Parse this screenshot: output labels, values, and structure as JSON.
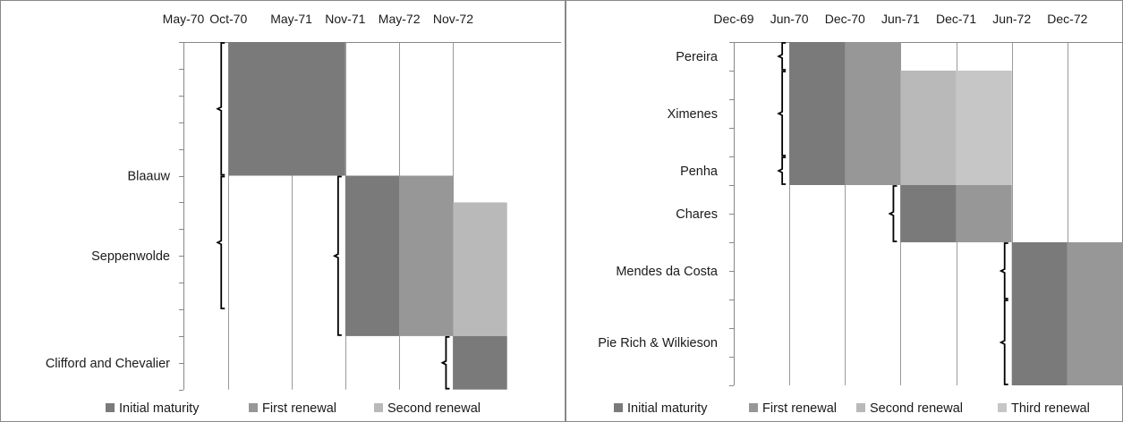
{
  "chart_data": [
    {
      "type": "bar",
      "subtype": "gantt",
      "x_tick_labels": [
        "May-70",
        "Oct-70",
        "May-71",
        "Nov-71",
        "May-72",
        "Nov-72"
      ],
      "x_range_months": [
        "May-70",
        "Nov-73"
      ],
      "grid": "vertical",
      "legend_position": "bottom",
      "series": [
        {
          "name": "Initial maturity",
          "color": "#7a7a7a"
        },
        {
          "name": "First renewal",
          "color": "#979797"
        },
        {
          "name": "Second renewal",
          "color": "#b9b9b9"
        }
      ],
      "groups": [
        {
          "label": "Blaauw",
          "rows": [
            [
              0,
              5
            ],
            [
              5,
              10
            ]
          ],
          "bars": [
            {
              "series": 0,
              "start": "Oct-70",
              "end": "Nov-71",
              "row_start": 0,
              "row_end": 5
            }
          ]
        },
        {
          "label": "Seppenwolde",
          "rows": [
            [
              5,
              11
            ]
          ],
          "bars": [
            {
              "series": 0,
              "start": "Nov-71",
              "end": "May-72",
              "row_start": 5,
              "row_end": 11
            },
            {
              "series": 1,
              "start": "May-72",
              "end": "Nov-72",
              "row_start": 5,
              "row_end": 11
            },
            {
              "series": 2,
              "start": "Nov-72",
              "end": "May-73",
              "row_start": 6,
              "row_end": 11
            }
          ]
        },
        {
          "label": "Clifford and Chevalier",
          "rows": [
            [
              11,
              13
            ]
          ],
          "bars": [
            {
              "series": 0,
              "start": "Nov-72",
              "end": "May-73",
              "row_start": 11,
              "row_end": 13
            }
          ]
        }
      ]
    },
    {
      "type": "bar",
      "subtype": "gantt",
      "x_tick_labels": [
        "Dec-69",
        "Jun-70",
        "Dec-70",
        "Jun-71",
        "Dec-71",
        "Jun-72",
        "Dec-72"
      ],
      "x_range_months": [
        "Dec-69",
        "Jun-73"
      ],
      "grid": "vertical",
      "legend_position": "bottom",
      "series": [
        {
          "name": "Initial maturity",
          "color": "#7a7a7a"
        },
        {
          "name": "First renewal",
          "color": "#979797"
        },
        {
          "name": "Second renewal",
          "color": "#b9b9b9"
        },
        {
          "name": "Third renewal",
          "color": "#c6c6c6"
        }
      ],
      "groups": [
        {
          "label": "Pereira",
          "rows": [
            [
              0,
              1
            ]
          ],
          "bars": [
            {
              "series": 0,
              "start": "Jun-70",
              "end": "Dec-70",
              "row_start": 0,
              "row_end": 1
            },
            {
              "series": 1,
              "start": "Dec-70",
              "end": "Jun-71",
              "row_start": 0,
              "row_end": 1
            }
          ]
        },
        {
          "label": "Ximenes",
          "rows": [
            [
              1,
              4
            ]
          ],
          "bars": [
            {
              "series": 0,
              "start": "Jun-70",
              "end": "Dec-70",
              "row_start": 1,
              "row_end": 4
            },
            {
              "series": 1,
              "start": "Dec-70",
              "end": "Jun-71",
              "row_start": 1,
              "row_end": 4
            },
            {
              "series": 2,
              "start": "Jun-71",
              "end": "Dec-71",
              "row_start": 1,
              "row_end": 4
            },
            {
              "series": 3,
              "start": "Dec-71",
              "end": "Jun-72",
              "row_start": 1,
              "row_end": 4
            }
          ]
        },
        {
          "label": "Penha",
          "rows": [
            [
              4,
              5
            ]
          ],
          "bars": [
            {
              "series": 0,
              "start": "Jun-70",
              "end": "Dec-70",
              "row_start": 4,
              "row_end": 5
            },
            {
              "series": 1,
              "start": "Dec-70",
              "end": "Jun-71",
              "row_start": 4,
              "row_end": 5
            },
            {
              "series": 2,
              "start": "Jun-71",
              "end": "Dec-71",
              "row_start": 4,
              "row_end": 5
            },
            {
              "series": 3,
              "start": "Dec-71",
              "end": "Jun-72",
              "row_start": 4,
              "row_end": 5
            }
          ]
        },
        {
          "label": "Chares",
          "rows": [
            [
              5,
              7
            ]
          ],
          "bars": [
            {
              "series": 0,
              "start": "Jun-71",
              "end": "Dec-71",
              "row_start": 5,
              "row_end": 7
            },
            {
              "series": 1,
              "start": "Dec-71",
              "end": "Jun-72",
              "row_start": 5,
              "row_end": 7
            }
          ]
        },
        {
          "label": "Mendes da Costa",
          "rows": [
            [
              7,
              9
            ]
          ],
          "bars": [
            {
              "series": 0,
              "start": "Jun-72",
              "end": "Dec-72",
              "row_start": 7,
              "row_end": 9
            },
            {
              "series": 1,
              "start": "Dec-72",
              "end": "Jun-73",
              "row_start": 7,
              "row_end": 9
            }
          ]
        },
        {
          "label": "Pie Rich & Wilkieson",
          "rows": [
            [
              9,
              12
            ]
          ],
          "bars": [
            {
              "series": 0,
              "start": "Jun-72",
              "end": "Dec-72",
              "row_start": 9,
              "row_end": 12
            },
            {
              "series": 1,
              "start": "Dec-72",
              "end": "Jun-73",
              "row_start": 9,
              "row_end": 12
            }
          ]
        }
      ]
    }
  ]
}
